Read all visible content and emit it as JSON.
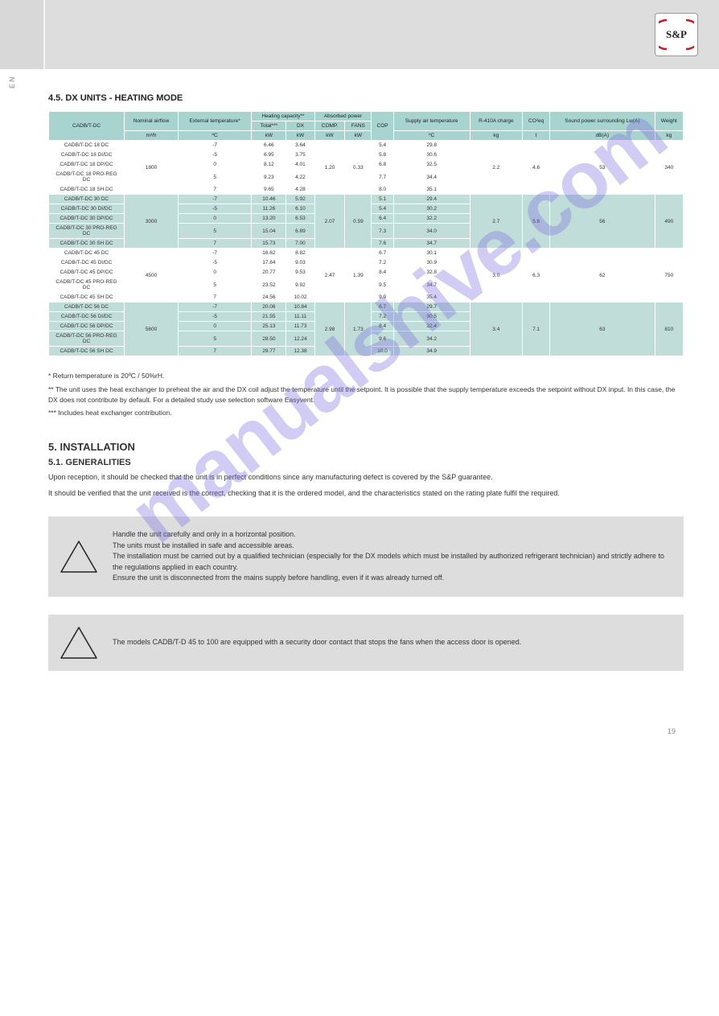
{
  "side_label": "EN",
  "section_title": "4.5. DX UNITS - HEATING MODE",
  "table": {
    "headers": {
      "cadb_dc": "CADB/T-DC",
      "airflow": "Nominal airflow",
      "airflow_unit": "m³/h",
      "ext_temp": "External temperature*",
      "ext_temp_unit": "ºC",
      "heating_capacity": "Heating capacity**",
      "total_kw": "Total***",
      "total_unit": "kW",
      "dx_kw": "DX",
      "dx_unit": "kW",
      "absorbed_power": "Absorbed power",
      "comp_kw": "COMP.",
      "comp_unit": "kW",
      "fans_kw": "FANS",
      "fans_unit": "kW",
      "cop": "COP",
      "supply_air_temp": "Supply air temperature",
      "supply_unit": "ºC",
      "r410a": "R-410A charge",
      "r410a_unit": "kg",
      "co2eq": "CO²eq",
      "co2eq_unit": "t",
      "sound_power": "Sound power surrounding Lw(A)",
      "sound_unit": "dB(A)",
      "weight": "Weight",
      "weight_unit": "kg"
    },
    "groups": [
      {
        "class": "row-a",
        "airflow": "1800",
        "absorbed_comp": "1.20",
        "absorbed_fans": "0.33",
        "r410a": "2.2",
        "co2eq": "4.6",
        "sound": "53",
        "weight": "340",
        "rows": [
          {
            "model": "CADB/T-DC 18 DC",
            "ext": "-7",
            "total": "6.46",
            "dx": "3.64",
            "cop": "5.4",
            "supply": "29.8"
          },
          {
            "model": "CADB/T-DC 18 DI/DC",
            "ext": "-5",
            "total": "6.95",
            "dx": "3.75",
            "cop": "5.8",
            "supply": "30.6"
          },
          {
            "model": "CADB/T-DC 18 DP/DC",
            "ext": "0",
            "total": "8.12",
            "dx": "4.01",
            "cop": "6.8",
            "supply": "32.5"
          },
          {
            "model": "CADB/T-DC 18 PRO-REG DC",
            "ext": "5",
            "total": "9.23",
            "dx": "4.22",
            "cop": "7.7",
            "supply": "34.4"
          },
          {
            "model": "CADB/T-DC 18 SH DC",
            "ext": "7",
            "total": "9.65",
            "dx": "4.28",
            "cop": "8.0",
            "supply": "35.1"
          }
        ]
      },
      {
        "class": "row-b",
        "airflow": "3000",
        "absorbed_comp": "2.07",
        "absorbed_fans": "0.59",
        "r410a": "2.7",
        "co2eq": "5.6",
        "sound": "56",
        "weight": "490",
        "rows": [
          {
            "model": "CADB/T-DC 30 DC",
            "ext": "-7",
            "total": "10.46",
            "dx": "5.92",
            "cop": "5.1",
            "supply": "29.4"
          },
          {
            "model": "CADB/T-DC 30 DI/DC",
            "ext": "-5",
            "total": "11.26",
            "dx": "6.10",
            "cop": "5.4",
            "supply": "30.2"
          },
          {
            "model": "CADB/T-DC 30 DP/DC",
            "ext": "0",
            "total": "13.20",
            "dx": "6.53",
            "cop": "6.4",
            "supply": "32.2"
          },
          {
            "model": "CADB/T-DC 30 PRO-REG DC",
            "ext": "5",
            "total": "15.04",
            "dx": "6.89",
            "cop": "7.3",
            "supply": "34.0"
          },
          {
            "model": "CADB/T-DC 30 SH DC",
            "ext": "7",
            "total": "15.73",
            "dx": "7.00",
            "cop": "7.6",
            "supply": "34.7"
          }
        ]
      },
      {
        "class": "row-a",
        "airflow": "4500",
        "absorbed_comp": "2.47",
        "absorbed_fans": "1.39",
        "r410a": "3.0",
        "co2eq": "6.3",
        "sound": "62",
        "weight": "750",
        "rows": [
          {
            "model": "CADB/T-DC 45 DC",
            "ext": "-7",
            "total": "16.62",
            "dx": "8.82",
            "cop": "6.7",
            "supply": "30.1"
          },
          {
            "model": "CADB/T-DC 45 DI/DC",
            "ext": "-5",
            "total": "17.84",
            "dx": "9.03",
            "cop": "7.2",
            "supply": "30.9"
          },
          {
            "model": "CADB/T-DC 45 DP/DC",
            "ext": "0",
            "total": "20.77",
            "dx": "9.53",
            "cop": "8.4",
            "supply": "32.8"
          },
          {
            "model": "CADB/T-DC 45 PRO-REG DC",
            "ext": "5",
            "total": "23.52",
            "dx": "9.92",
            "cop": "9.5",
            "supply": "34.7"
          },
          {
            "model": "CADB/T-DC 45 SH DC",
            "ext": "7",
            "total": "24.56",
            "dx": "10.02",
            "cop": "9.9",
            "supply": "35.4"
          }
        ]
      },
      {
        "class": "row-b",
        "airflow": "5600",
        "absorbed_comp": "2.98",
        "absorbed_fans": "1.73",
        "r410a": "3.4",
        "co2eq": "7.1",
        "sound": "63",
        "weight": "810",
        "rows": [
          {
            "model": "CADB/T-DC 56 DC",
            "ext": "-7",
            "total": "20.06",
            "dx": "10.84",
            "cop": "6.7",
            "supply": "29.7"
          },
          {
            "model": "CADB/T-DC 56 DI/DC",
            "ext": "-5",
            "total": "21.55",
            "dx": "11.11",
            "cop": "7.2",
            "supply": "30.5"
          },
          {
            "model": "CADB/T-DC 56 DP/DC",
            "ext": "0",
            "total": "25.13",
            "dx": "11.73",
            "cop": "8.4",
            "supply": "32.4"
          },
          {
            "model": "CADB/T-DC 56 PRO-REG DC",
            "ext": "5",
            "total": "28.50",
            "dx": "12.24",
            "cop": "9.6",
            "supply": "34.2"
          },
          {
            "model": "CADB/T-DC 56 SH DC",
            "ext": "7",
            "total": "29.77",
            "dx": "12.38",
            "cop": "10.0",
            "supply": "34.9"
          }
        ]
      }
    ]
  },
  "footnotes": {
    "n1": "* Return temperature is 20ºC / 50%rH.",
    "n2": "** The unit uses the heat exchanger to preheat the air and the DX coil adjust the temperature until the setpoint. It is possible that the supply temperature exceeds the setpoint without DX input. In this case, the DX does not contribute by default. For a detailed study use selection software Easyvent.",
    "n3": "*** Includes heat exchanger contribution."
  },
  "sect5": {
    "title": "5. INSTALLATION",
    "subtitle": "5.1. GENERALITIES",
    "p1": "Upon reception, it should be checked that the unit is in perfect conditions since any manufacturing defect is covered by the S&P guarantee.",
    "p2": "It should be verified that the unit received is the correct, checking that it is the ordered model, and the characteristics stated on the rating plate fulfil the required."
  },
  "warning1": {
    "l1": "Handle the unit carefully and only in a horizontal position.",
    "l2": "The units must be installed in safe and accessible areas.",
    "l3": "The installation must be carried out by a qualified technician (especially for the DX models which must be installed by authorized refrigerant technician) and strictly adhere to the regulations applied in each country.",
    "l4": "Ensure the unit is disconnected from the mains supply before handling, even if it was already turned off."
  },
  "warning2": {
    "text": "The models CADB/T-D 45 to 100 are equipped with a security door contact that stops the fans when the access door is opened."
  },
  "page_number": "19",
  "watermark": "manualshive.com",
  "colors": {
    "header_bg": "#a8d4d0",
    "row_alt_bg": "#c0ddd9",
    "page_header_bg": "#dddddd"
  }
}
